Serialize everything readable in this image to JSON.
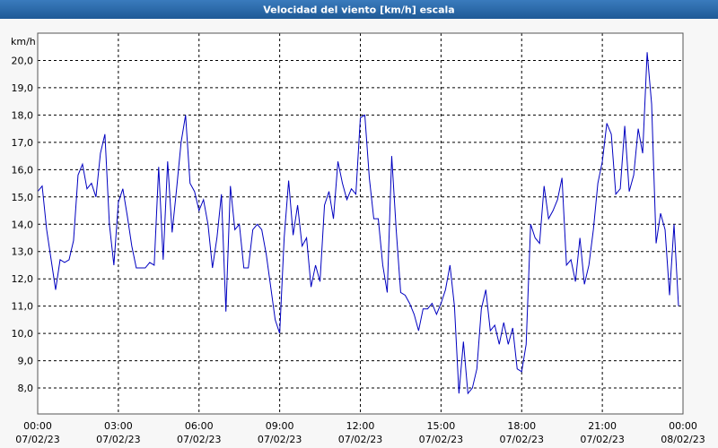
{
  "chart_data": {
    "type": "line",
    "title": "Velocidad del viento [km/h] escala",
    "y_label": "km/h",
    "ylim": [
      7.05,
      21.0
    ],
    "yticks": [
      {
        "value": 8,
        "label": "8,0"
      },
      {
        "value": 9,
        "label": "9,0"
      },
      {
        "value": 10,
        "label": "10,0"
      },
      {
        "value": 11,
        "label": "11,0"
      },
      {
        "value": 12,
        "label": "12,0"
      },
      {
        "value": 13,
        "label": "13,0"
      },
      {
        "value": 14,
        "label": "14,0"
      },
      {
        "value": 15,
        "label": "15,0"
      },
      {
        "value": 16,
        "label": "16,0"
      },
      {
        "value": 17,
        "label": "17,0"
      },
      {
        "value": 18,
        "label": "18,0"
      },
      {
        "value": 19,
        "label": "19,0"
      },
      {
        "value": 20,
        "label": "20,0"
      }
    ],
    "xlim": [
      0,
      1440
    ],
    "xticks": [
      {
        "value": 0,
        "label": "00:00",
        "date": "07/02/23"
      },
      {
        "value": 180,
        "label": "03:00",
        "date": "07/02/23"
      },
      {
        "value": 360,
        "label": "06:00",
        "date": "07/02/23"
      },
      {
        "value": 540,
        "label": "09:00",
        "date": "07/02/23"
      },
      {
        "value": 720,
        "label": "12:00",
        "date": "07/02/23"
      },
      {
        "value": 900,
        "label": "15:00",
        "date": "07/02/23"
      },
      {
        "value": 1080,
        "label": "18:00",
        "date": "07/02/23"
      },
      {
        "value": 1260,
        "label": "21:00",
        "date": "07/02/23"
      },
      {
        "value": 1440,
        "label": "00:00",
        "date": "08/02/23"
      }
    ],
    "grid": true,
    "x": [
      0,
      10,
      20,
      30,
      40,
      50,
      60,
      70,
      80,
      90,
      100,
      110,
      120,
      130,
      140,
      150,
      160,
      170,
      180,
      190,
      200,
      210,
      220,
      230,
      240,
      250,
      260,
      270,
      280,
      290,
      300,
      310,
      320,
      330,
      340,
      350,
      360,
      370,
      380,
      390,
      400,
      410,
      420,
      430,
      440,
      450,
      460,
      470,
      480,
      490,
      500,
      510,
      520,
      530,
      540,
      550,
      560,
      570,
      580,
      590,
      600,
      610,
      620,
      630,
      640,
      650,
      660,
      670,
      680,
      690,
      700,
      710,
      720,
      730,
      740,
      750,
      760,
      770,
      780,
      790,
      800,
      810,
      820,
      830,
      840,
      850,
      860,
      870,
      880,
      890,
      900,
      910,
      920,
      930,
      940,
      950,
      960,
      970,
      980,
      990,
      1000,
      1010,
      1020,
      1030,
      1040,
      1050,
      1060,
      1070,
      1080,
      1090,
      1100,
      1110,
      1120,
      1130,
      1140,
      1150,
      1160,
      1170,
      1180,
      1190,
      1200,
      1210,
      1220,
      1230,
      1240,
      1250,
      1260,
      1270,
      1280,
      1290,
      1300,
      1310,
      1320,
      1330,
      1340,
      1350,
      1360,
      1370,
      1380,
      1390,
      1400,
      1410,
      1420,
      1430
    ],
    "series": [
      {
        "color": "#0000c0",
        "values": [
          15.2,
          15.4,
          13.8,
          12.7,
          11.6,
          12.7,
          12.6,
          12.7,
          13.4,
          15.8,
          16.2,
          15.3,
          15.5,
          15.0,
          16.6,
          17.3,
          14.0,
          12.5,
          14.8,
          15.3,
          14.3,
          13.2,
          12.4,
          12.4,
          12.4,
          12.6,
          12.5,
          16.1,
          12.7,
          16.3,
          13.7,
          15.3,
          17.0,
          18.0,
          15.5,
          15.2,
          14.5,
          14.9,
          14.0,
          12.4,
          13.5,
          15.1,
          10.8,
          15.4,
          13.8,
          14.0,
          12.4,
          12.4,
          13.8,
          14.0,
          13.8,
          12.9,
          11.7,
          10.5,
          10.0,
          13.5,
          15.6,
          13.6,
          14.7,
          13.2,
          13.5,
          11.7,
          12.5,
          11.9,
          14.7,
          15.2,
          14.2,
          16.3,
          15.5,
          14.9,
          15.3,
          15.1,
          17.9,
          18.0,
          15.7,
          14.2,
          14.2,
          12.5,
          11.5,
          16.5,
          13.8,
          11.5,
          11.4,
          11.1,
          10.7,
          10.1,
          10.9,
          10.9,
          11.1,
          10.7,
          11.1,
          11.6,
          12.5,
          11.0,
          7.8,
          9.7,
          7.8,
          8.0,
          8.7,
          10.9,
          11.6,
          10.1,
          10.3,
          9.6,
          10.4,
          9.6,
          10.2,
          8.7,
          8.6,
          9.6,
          14.0,
          13.5,
          13.3,
          15.4,
          14.2,
          14.5,
          14.9,
          15.7,
          12.5,
          12.7,
          11.9,
          13.5,
          11.8,
          12.5,
          13.8,
          15.5,
          16.3,
          17.7,
          17.3,
          15.1,
          15.3,
          17.6,
          15.2,
          15.8,
          17.5,
          16.6,
          20.3,
          18.4,
          13.3,
          14.4,
          13.8,
          11.4,
          14.0,
          11.0
        ]
      }
    ]
  }
}
